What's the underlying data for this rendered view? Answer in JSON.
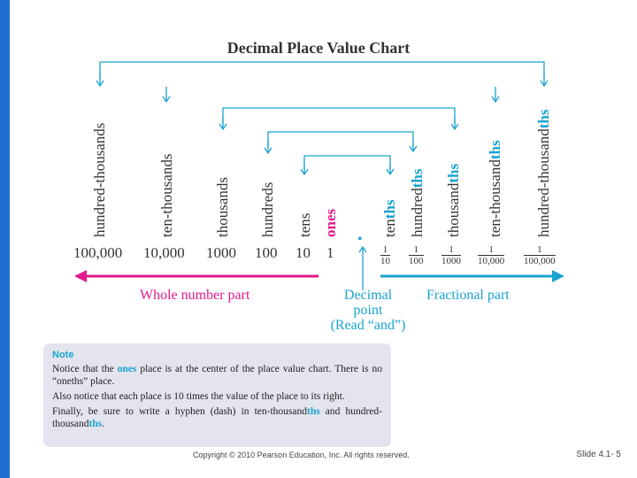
{
  "title": "Decimal Place Value Chart",
  "place_labels": [
    {
      "base": "hundred-thousands",
      "suffix": ""
    },
    {
      "base": "ten-thousands",
      "suffix": ""
    },
    {
      "base": "thousands",
      "suffix": ""
    },
    {
      "base": "hundreds",
      "suffix": ""
    },
    {
      "base": "tens",
      "suffix": ""
    },
    {
      "base": "ones",
      "suffix": ""
    },
    {
      "base": "ten",
      "suffix": "ths"
    },
    {
      "base": "hundred",
      "suffix": "ths"
    },
    {
      "base": "thousand",
      "suffix": "ths"
    },
    {
      "base": "ten-thousand",
      "suffix": "ths"
    },
    {
      "base": "hundred-thousand",
      "suffix": "ths"
    }
  ],
  "whole_values": [
    "100,000",
    "10,000",
    "1000",
    "100",
    "10",
    "1"
  ],
  "fractions": [
    {
      "num": "1",
      "den": "10"
    },
    {
      "num": "1",
      "den": "100"
    },
    {
      "num": "1",
      "den": "1000"
    },
    {
      "num": "1",
      "den": "10,000"
    },
    {
      "num": "1",
      "den": "100,000"
    }
  ],
  "decimal_point": "•",
  "whole_part_label": "Whole number part",
  "decimal_point_label": {
    "line1": "Decimal",
    "line2": "point",
    "line3": "(Read “and”)"
  },
  "fractional_part_label": "Fractional part",
  "note": {
    "heading": "Note",
    "p1_before": "Notice that the ",
    "p1_ones": "ones",
    "p1_after": " place is at the center of the place value chart. There is no “oneths” place.",
    "p2": "Also notice that each place is 10 times the value of the place to its right.",
    "p3_before": "Finally, be sure to write a hyphen (dash) in ten-thousand",
    "p3_ths1": "ths",
    "p3_mid": " and hundred-thousand",
    "p3_ths2": "ths",
    "p3_end": "."
  },
  "footer": "Copyright © 2010 Pearson Education, Inc.  All rights reserved.",
  "slide_number": "Slide 4.1- 5",
  "colors": {
    "pink": "#e2188c",
    "blue": "#19a3d1",
    "sidebar": "#1f6fd1"
  }
}
